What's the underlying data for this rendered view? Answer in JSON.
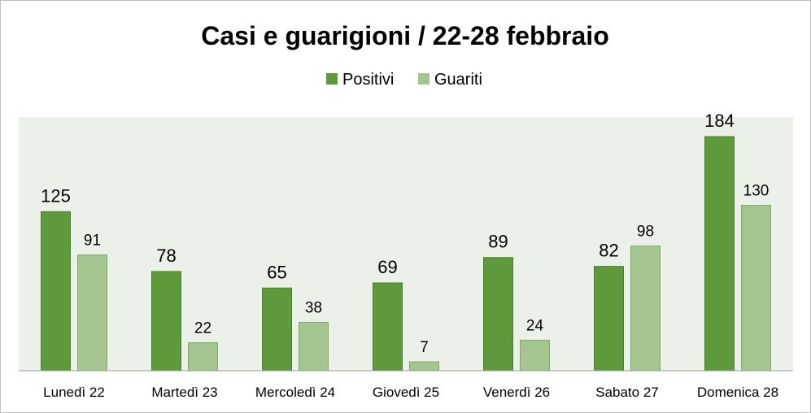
{
  "chart_data": {
    "type": "bar",
    "title": "Casi e guarigioni / 22-28 febbraio",
    "categories": [
      "Lunedì 22",
      "Martedì 23",
      "Mercoledì 24",
      "Giovedì 25",
      "Venerdì 26",
      "Sabato 27",
      "Domenica 28"
    ],
    "series": [
      {
        "name": "Positivi",
        "values": [
          125,
          78,
          65,
          69,
          89,
          82,
          184
        ],
        "color": "#5e9a3c"
      },
      {
        "name": "Guariti",
        "values": [
          91,
          22,
          38,
          7,
          24,
          98,
          130
        ],
        "color": "#a4c590"
      }
    ],
    "ylim": [
      0,
      200
    ],
    "legend_position": "top-center",
    "plot_background": "#ebf1e8",
    "grid": false,
    "xlabel": "",
    "ylabel": ""
  }
}
